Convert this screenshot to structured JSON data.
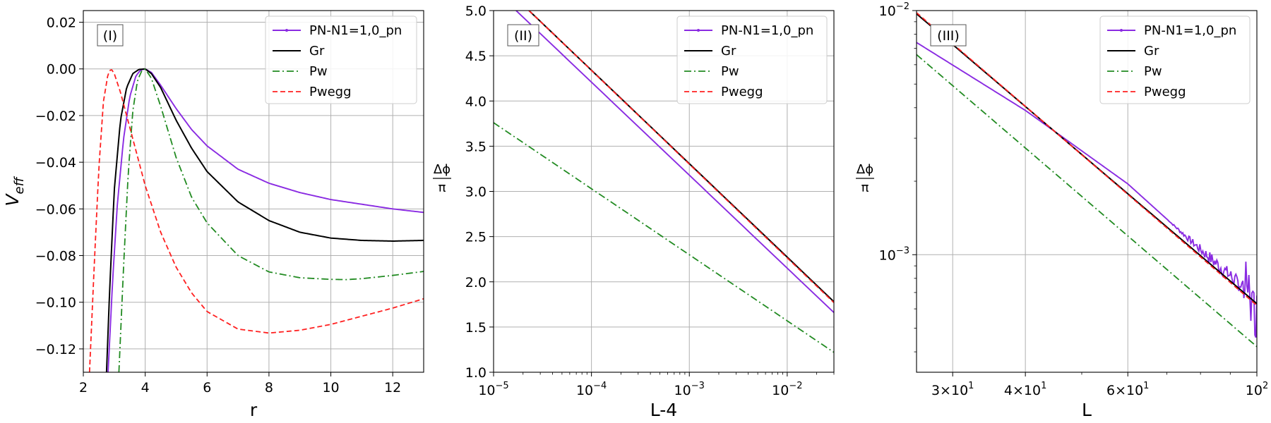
{
  "colors": {
    "pn": "#8a2be2",
    "gr": "#000000",
    "pw": "#228b22",
    "pwegg": "#ff2020",
    "grid": "#b0b0b0"
  },
  "chart_data": [
    {
      "type": "line",
      "panel_tag": "(I)",
      "xlabel": "r",
      "ylabel": "V_eff",
      "ylabel_main": "V",
      "ylabel_sub": "eff",
      "xscale": "linear",
      "yscale": "linear",
      "xlim": [
        2,
        13
      ],
      "ylim": [
        -0.13,
        0.025
      ],
      "xticks": [
        2,
        4,
        6,
        8,
        10,
        12
      ],
      "xtick_labels": [
        "2",
        "4",
        "6",
        "8",
        "10",
        "12"
      ],
      "yticks": [
        0.02,
        0.0,
        -0.02,
        -0.04,
        -0.06,
        -0.08,
        -0.1,
        -0.12
      ],
      "ytick_labels": [
        "0.02",
        "0.00",
        "−0.02",
        "−0.04",
        "−0.06",
        "−0.08",
        "−0.10",
        "−0.12"
      ],
      "grid": true,
      "legend_position": "top-right",
      "series": [
        {
          "name": "PN-N1=1,0_pn",
          "key": "pn",
          "style": "solid-marker",
          "x": [
            2.8,
            2.95,
            3.1,
            3.3,
            3.5,
            3.7,
            3.85,
            4.0,
            4.2,
            4.5,
            5.0,
            5.5,
            6.0,
            7.0,
            8.0,
            9.0,
            10.0,
            11.0,
            12.0,
            13.0
          ],
          "y": [
            -0.13,
            -0.09,
            -0.058,
            -0.03,
            -0.012,
            -0.003,
            -0.0005,
            0.0,
            -0.0015,
            -0.007,
            -0.017,
            -0.026,
            -0.033,
            -0.043,
            -0.049,
            -0.053,
            -0.056,
            -0.058,
            -0.06,
            -0.0615
          ]
        },
        {
          "name": "Gr",
          "key": "gr",
          "style": "solid",
          "x": [
            2.75,
            2.85,
            3.0,
            3.2,
            3.4,
            3.6,
            3.8,
            4.0,
            4.2,
            4.5,
            5.0,
            5.5,
            6.0,
            7.0,
            8.0,
            9.0,
            10.0,
            11.0,
            12.0,
            13.0
          ],
          "y": [
            -0.13,
            -0.095,
            -0.052,
            -0.022,
            -0.008,
            -0.002,
            -0.0002,
            0.0,
            -0.002,
            -0.008,
            -0.022,
            -0.034,
            -0.044,
            -0.057,
            -0.065,
            -0.07,
            -0.0725,
            -0.0735,
            -0.0738,
            -0.0735
          ]
        },
        {
          "name": "Pw",
          "key": "pw",
          "style": "dashdot",
          "x": [
            3.15,
            3.3,
            3.45,
            3.6,
            3.75,
            3.9,
            4.0,
            4.2,
            4.5,
            5.0,
            5.5,
            6.0,
            7.0,
            8.0,
            9.0,
            10.0,
            10.5,
            11.0,
            12.0,
            13.0
          ],
          "y": [
            -0.13,
            -0.085,
            -0.045,
            -0.018,
            -0.005,
            -0.0005,
            0.0,
            -0.004,
            -0.016,
            -0.038,
            -0.055,
            -0.066,
            -0.08,
            -0.087,
            -0.0895,
            -0.0902,
            -0.0903,
            -0.0899,
            -0.0885,
            -0.0868
          ]
        },
        {
          "name": "Pwegg",
          "key": "pwegg",
          "style": "dashed",
          "x": [
            2.2,
            2.35,
            2.5,
            2.65,
            2.8,
            2.9,
            3.0,
            3.2,
            3.5,
            4.0,
            4.5,
            5.0,
            5.5,
            6.0,
            7.0,
            8.0,
            9.0,
            10.0,
            11.0,
            12.0,
            13.0
          ],
          "y": [
            -0.13,
            -0.085,
            -0.043,
            -0.014,
            -0.002,
            0.0,
            -0.002,
            -0.01,
            -0.025,
            -0.05,
            -0.07,
            -0.085,
            -0.096,
            -0.104,
            -0.1115,
            -0.1132,
            -0.112,
            -0.1095,
            -0.106,
            -0.1025,
            -0.0985
          ]
        }
      ]
    },
    {
      "type": "line",
      "panel_tag": "(II)",
      "xlabel": "L-4",
      "ylabel": "Δφ/π",
      "ylabel_num": "Δϕ",
      "ylabel_den": "π",
      "xscale": "log",
      "yscale": "linear",
      "xlim": [
        1e-05,
        0.03
      ],
      "ylim": [
        1.0,
        5.0
      ],
      "xticks": [
        1e-05,
        0.0001,
        0.001,
        0.01
      ],
      "xtick_base": "10",
      "xtick_exps": [
        "−5",
        "−4",
        "−3",
        "−2"
      ],
      "yticks": [
        1.0,
        1.5,
        2.0,
        2.5,
        3.0,
        3.5,
        4.0,
        4.5,
        5.0
      ],
      "ytick_labels": [
        "1.0",
        "1.5",
        "2.0",
        "2.5",
        "3.0",
        "3.5",
        "4.0",
        "4.5",
        "5.0"
      ],
      "grid": true,
      "legend_position": "top-right",
      "series": [
        {
          "name": "PN-N1=1,0_pn",
          "key": "pn",
          "style": "solid-marker",
          "x": [
            1.7e-05,
            0.03
          ],
          "y": [
            5.0,
            1.66
          ]
        },
        {
          "name": "Gr",
          "key": "gr",
          "style": "solid",
          "x": [
            2.3e-05,
            0.03
          ],
          "y": [
            5.0,
            1.78
          ]
        },
        {
          "name": "Pw",
          "key": "pw",
          "style": "dashdot",
          "x": [
            1e-05,
            0.03
          ],
          "y": [
            3.76,
            1.22
          ]
        },
        {
          "name": "Pwegg",
          "key": "pwegg",
          "style": "dashed",
          "x": [
            2.3e-05,
            0.03
          ],
          "y": [
            5.0,
            1.77
          ]
        }
      ]
    },
    {
      "type": "line",
      "panel_tag": "(III)",
      "xlabel": "L",
      "ylabel": "Δφ/π",
      "ylabel_num": "Δϕ",
      "ylabel_den": "π",
      "xscale": "log",
      "yscale": "log",
      "xlim": [
        26,
        100
      ],
      "ylim": [
        0.00033,
        0.01
      ],
      "major_yticks": [
        0.01,
        0.001
      ],
      "ytick_base": "10",
      "ytick_exps": [
        "−2",
        "−3"
      ],
      "xticks": [
        30,
        40,
        60,
        100
      ],
      "xtick_coefs": [
        "3×10",
        "4×10",
        "6×10",
        "10"
      ],
      "xtick_exps": [
        "1",
        "1",
        "1",
        "2"
      ],
      "grid": true,
      "legend_position": "top-right",
      "series": [
        {
          "name": "PN-N1=1,0_pn",
          "key": "pn",
          "style": "solid-marker",
          "x": [
            26,
            40,
            60,
            70,
            80,
            90,
            100
          ],
          "y": [
            0.0074,
            0.0039,
            0.00195,
            0.0014,
            0.00105,
            0.00082,
            0.00065
          ],
          "noise_from_x": 70,
          "noise_amp": 0.07,
          "spike_from_x": 90
        },
        {
          "name": "Gr",
          "key": "gr",
          "style": "solid",
          "x": [
            26,
            100
          ],
          "y": [
            0.0097,
            0.00063
          ]
        },
        {
          "name": "Pw",
          "key": "pw",
          "style": "dashdot",
          "x": [
            26,
            100
          ],
          "y": [
            0.0066,
            0.00042
          ]
        },
        {
          "name": "Pwegg",
          "key": "pwegg",
          "style": "dashed",
          "x": [
            26,
            100
          ],
          "y": [
            0.0098,
            0.00062
          ]
        }
      ]
    }
  ]
}
